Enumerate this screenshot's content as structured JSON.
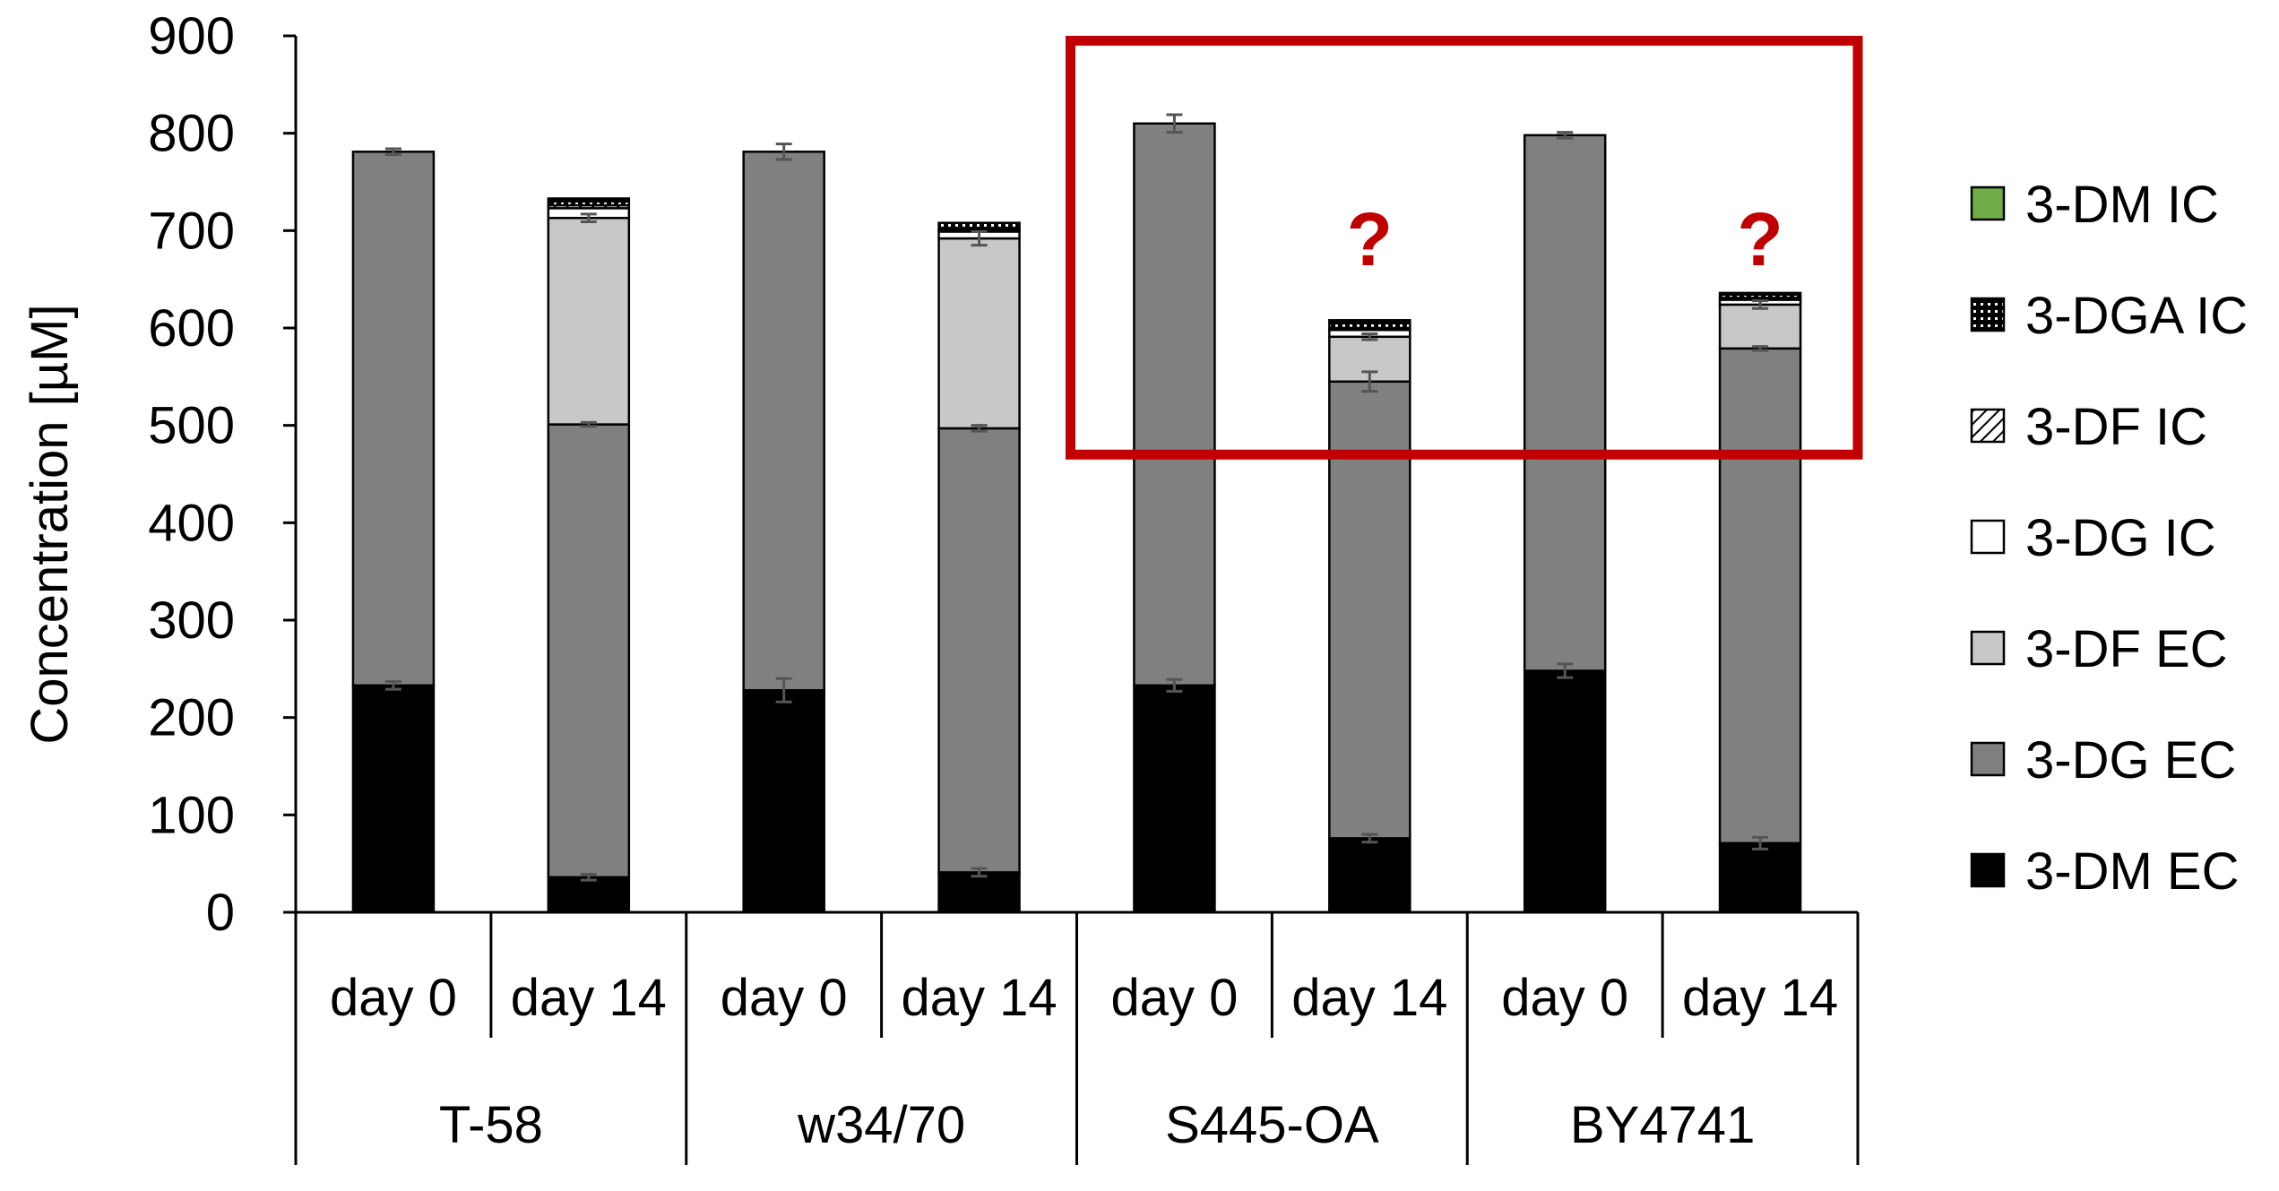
{
  "chart_data": {
    "type": "bar",
    "stacked": true,
    "ylabel": "Concentration [µM]",
    "ylim": [
      0,
      900
    ],
    "yticks": [
      0,
      100,
      200,
      300,
      400,
      500,
      600,
      700,
      800,
      900
    ],
    "groups": [
      "T-58",
      "w34/70",
      "S445-OA",
      "BY4741"
    ],
    "categories": [
      "day 0",
      "day 14",
      "day 0",
      "day 14",
      "day 0",
      "day 14",
      "day 0",
      "day 14"
    ],
    "series": [
      {
        "name": "3-DM EC",
        "color": "#000000",
        "pattern": "solid",
        "values": [
          233,
          36,
          228,
          41,
          233,
          76,
          248,
          71
        ],
        "errors": [
          4,
          3,
          12,
          4,
          6,
          4,
          7,
          6
        ]
      },
      {
        "name": "3-DG EC",
        "color": "#808080",
        "pattern": "solid",
        "values": [
          548,
          465,
          553,
          456,
          577,
          469,
          550,
          508
        ],
        "errors": [
          3,
          2,
          8,
          3,
          9,
          10,
          3,
          2
        ]
      },
      {
        "name": "3-DF EC",
        "color": "#c8c8c8",
        "pattern": "solid",
        "values": [
          0,
          212,
          0,
          195,
          0,
          46,
          0,
          45
        ],
        "errors": [
          0,
          4,
          0,
          7,
          0,
          3,
          0,
          4
        ]
      },
      {
        "name": "3-DG IC",
        "color": "#ffffff",
        "pattern": "solid",
        "values": [
          0,
          10,
          0,
          7,
          0,
          7,
          0,
          5
        ],
        "errors": [
          0,
          0,
          0,
          0,
          0,
          0,
          0,
          0
        ]
      },
      {
        "name": "3-DF IC",
        "color": "#ffffff",
        "pattern": "hatch",
        "values": [
          0,
          3,
          0,
          2,
          0,
          2,
          0,
          2
        ],
        "errors": [
          0,
          0,
          0,
          0,
          0,
          0,
          0,
          0
        ]
      },
      {
        "name": "3-DGA IC",
        "color": "#000000",
        "pattern": "dotted",
        "values": [
          0,
          7,
          0,
          7,
          0,
          8,
          0,
          5
        ],
        "errors": [
          0,
          0,
          0,
          0,
          0,
          0,
          0,
          0
        ]
      },
      {
        "name": "3-DM IC",
        "color": "#70ad47",
        "pattern": "solid",
        "values": [
          0,
          0,
          0,
          0,
          0,
          0,
          0,
          0
        ],
        "errors": [
          0,
          0,
          0,
          0,
          0,
          0,
          0,
          0
        ]
      }
    ],
    "legend_order": [
      "3-DM IC",
      "3-DGA IC",
      "3-DF IC",
      "3-DG IC",
      "3-DF EC",
      "3-DG EC",
      "3-DM EC"
    ],
    "legend_position": "right",
    "annotations": [
      {
        "text": "?",
        "category_index": 5,
        "y": 690,
        "color": "#c00000"
      },
      {
        "text": "?",
        "category_index": 7,
        "y": 690,
        "color": "#c00000"
      }
    ],
    "highlight_box": {
      "color": "#c00000",
      "from_category": 4,
      "to_category": 7,
      "y_from": 470,
      "y_to": 895
    }
  }
}
